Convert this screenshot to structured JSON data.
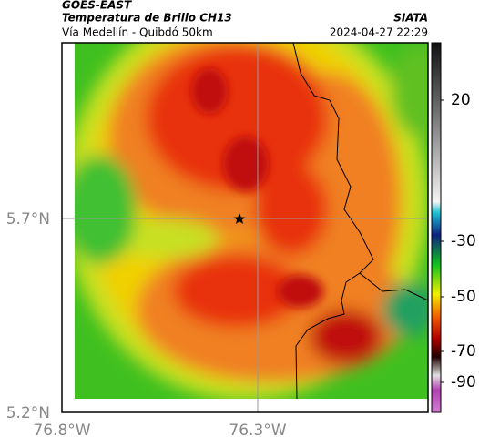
{
  "header": {
    "satellite": "GOES-EAST",
    "title": "Temperatura de Brillo CH13",
    "subtitle": "Vía Medellín - Quibdó 50km",
    "source": "SIATA",
    "datetime": "2024-04-27 22:29"
  },
  "axes": {
    "lat_labels": [
      "5.7°N",
      "5.2°N"
    ],
    "lon_labels": [
      "76.8°W",
      "76.3°W"
    ]
  },
  "colorbar": {
    "ticks": [
      "20",
      "-30",
      "-50",
      "-70",
      "-90"
    ]
  }
}
